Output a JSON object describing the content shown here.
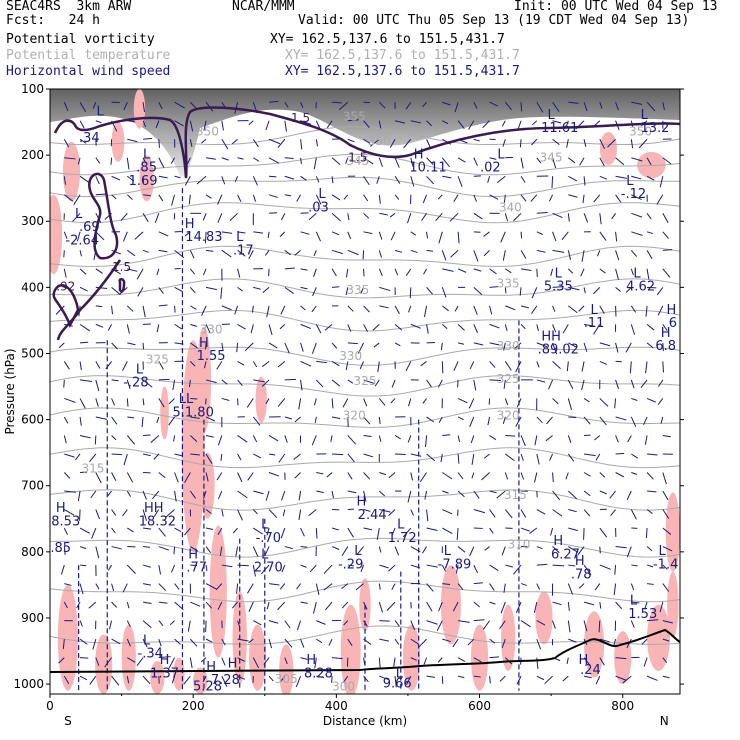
{
  "header": {
    "line1_left": "SEAC4RS  3km ARW",
    "line1_center": "NCAR/MMM",
    "line1_right": "Init: 00 UTC Wed 04 Sep 13",
    "line2_left": "Fcst:   24 h",
    "line2_right": "Valid: 00 UTC Thu 05 Sep 13 (19 CDT Wed 04 Sep 13)",
    "fields": [
      {
        "name": "Potential vorticity",
        "xy": "XY= 162.5,137.6 to 151.5,431.7",
        "color": "#000000"
      },
      {
        "name": "Potential temperature",
        "xy": "XY= 162.5,137.6 to 151.5,431.7",
        "color": "#b0b0b0"
      },
      {
        "name": "Horizontal wind speed",
        "xy": "XY= 162.5,137.6 to 151.5,431.7",
        "color": "#1a1a80"
      }
    ]
  },
  "chart_data": {
    "type": "cross-section",
    "xlabel": "Distance (km)",
    "ylabel": "Pressure (hPa)",
    "xlim": [
      0,
      880
    ],
    "ylim": [
      1015,
      100
    ],
    "x_ticks": [
      0,
      200,
      400,
      600,
      800
    ],
    "y_ticks": [
      100,
      200,
      300,
      400,
      500,
      600,
      700,
      800,
      900,
      1000
    ],
    "end_labels": {
      "left": "S",
      "right": "N"
    },
    "colors": {
      "pv_contour": "#3a1a50",
      "theta": "#aaaaaa",
      "wind": "#1a1a80",
      "shading": "#f9b5b5",
      "terrain": "#000000"
    },
    "theta_labels": [
      {
        "text": "350",
        "x": 220,
        "p": 170
      },
      {
        "text": "355",
        "x": 425,
        "p": 148
      },
      {
        "text": "350",
        "x": 460,
        "p": 185
      },
      {
        "text": "345",
        "x": 430,
        "p": 215
      },
      {
        "text": "350",
        "x": 825,
        "p": 170
      },
      {
        "text": "345",
        "x": 700,
        "p": 210
      },
      {
        "text": "340",
        "x": 643,
        "p": 285
      },
      {
        "text": "335",
        "x": 430,
        "p": 410
      },
      {
        "text": "335",
        "x": 640,
        "p": 400
      },
      {
        "text": "330",
        "x": 225,
        "p": 470
      },
      {
        "text": "330",
        "x": 420,
        "p": 510
      },
      {
        "text": "330",
        "x": 640,
        "p": 495
      },
      {
        "text": "325",
        "x": 150,
        "p": 515
      },
      {
        "text": "325",
        "x": 440,
        "p": 548
      },
      {
        "text": "325",
        "x": 640,
        "p": 545
      },
      {
        "text": "320",
        "x": 425,
        "p": 600
      },
      {
        "text": "320",
        "x": 640,
        "p": 600
      },
      {
        "text": "315",
        "x": 60,
        "p": 680
      },
      {
        "text": "315",
        "x": 650,
        "p": 720
      },
      {
        "text": "310",
        "x": 655,
        "p": 795
      },
      {
        "text": "305",
        "x": 330,
        "p": 998
      },
      {
        "text": "300",
        "x": 410,
        "p": 1010
      }
    ],
    "pv_labels": [
      {
        "text": "1.5",
        "x": 350,
        "p": 150
      },
      {
        "text": "1.5",
        "x": 430,
        "p": 210
      },
      {
        "text": "1.5",
        "x": 100,
        "p": 375
      },
      {
        "text": ".92",
        "x": 22,
        "p": 405
      }
    ],
    "hl_labels": [
      {
        "text": "L",
        "x": 70,
        "p": 140
      },
      {
        "text": ".34",
        "x": 55,
        "p": 180
      },
      {
        "text": "L",
        "x": 135,
        "p": 205
      },
      {
        "text": ".85",
        "x": 135,
        "p": 225
      },
      {
        "text": "1.69",
        "x": 130,
        "p": 245
      },
      {
        "text": "L",
        "x": 40,
        "p": 295
      },
      {
        "text": ".69",
        "x": 55,
        "p": 315
      },
      {
        "text": "-2.64",
        "x": 45,
        "p": 335
      },
      {
        "text": "H",
        "x": 195,
        "p": 310
      },
      {
        "text": "14.83",
        "x": 215,
        "p": 330
      },
      {
        "text": "L",
        "x": 265,
        "p": 330
      },
      {
        "text": ".17",
        "x": 270,
        "p": 350
      },
      {
        "text": "L",
        "x": 380,
        "p": 265
      },
      {
        "text": ".03",
        "x": 375,
        "p": 285
      },
      {
        "text": "H",
        "x": 515,
        "p": 205
      },
      {
        "text": "10.11",
        "x": 528,
        "p": 225
      },
      {
        "text": "L",
        "x": 630,
        "p": 205
      },
      {
        "text": ".02",
        "x": 615,
        "p": 225
      },
      {
        "text": "L",
        "x": 700,
        "p": 145
      },
      {
        "text": "11.61",
        "x": 712,
        "p": 165
      },
      {
        "text": "L",
        "x": 830,
        "p": 145
      },
      {
        "text": "13.2",
        "x": 845,
        "p": 165
      },
      {
        "text": "L",
        "x": 810,
        "p": 245
      },
      {
        "text": "-.12",
        "x": 815,
        "p": 265
      },
      {
        "text": "L",
        "x": 710,
        "p": 385
      },
      {
        "text": "5.35",
        "x": 710,
        "p": 405
      },
      {
        "text": "L",
        "x": 820,
        "p": 385
      },
      {
        "text": "4.62",
        "x": 825,
        "p": 405
      },
      {
        "text": "L",
        "x": 760,
        "p": 440
      },
      {
        "text": ".11",
        "x": 760,
        "p": 460
      },
      {
        "text": "H",
        "x": 868,
        "p": 440
      },
      {
        "text": "6",
        "x": 870,
        "p": 460
      },
      {
        "text": "H",
        "x": 860,
        "p": 475
      },
      {
        "text": "6.8",
        "x": 860,
        "p": 495
      },
      {
        "text": "HH",
        "x": 700,
        "p": 480
      },
      {
        "text": ".89.02",
        "x": 710,
        "p": 500
      },
      {
        "text": "H",
        "x": 215,
        "p": 490
      },
      {
        "text": "1.55",
        "x": 225,
        "p": 510
      },
      {
        "text": "L",
        "x": 125,
        "p": 530
      },
      {
        "text": "-.28",
        "x": 120,
        "p": 550
      },
      {
        "text": "LL",
        "x": 190,
        "p": 575
      },
      {
        "text": "5.1.80",
        "x": 200,
        "p": 595
      },
      {
        "text": "H",
        "x": 15,
        "p": 740
      },
      {
        "text": "8.53",
        "x": 22,
        "p": 760
      },
      {
        "text": ".85",
        "x": 15,
        "p": 800
      },
      {
        "text": "HH",
        "x": 145,
        "p": 740
      },
      {
        "text": "18.32",
        "x": 150,
        "p": 760
      },
      {
        "text": "H",
        "x": 435,
        "p": 730
      },
      {
        "text": "2.44",
        "x": 450,
        "p": 750
      },
      {
        "text": "L",
        "x": 490,
        "p": 765
      },
      {
        "text": "1.72",
        "x": 492,
        "p": 785
      },
      {
        "text": "L",
        "x": 300,
        "p": 765
      },
      {
        "text": "-.70",
        "x": 305,
        "p": 785
      },
      {
        "text": "H",
        "x": 200,
        "p": 810
      },
      {
        "text": ".77",
        "x": 205,
        "p": 830
      },
      {
        "text": "L",
        "x": 300,
        "p": 810
      },
      {
        "text": "2.70",
        "x": 305,
        "p": 830
      },
      {
        "text": "L",
        "x": 430,
        "p": 805
      },
      {
        "text": "-.29",
        "x": 420,
        "p": 825
      },
      {
        "text": "L",
        "x": 555,
        "p": 805
      },
      {
        "text": "-7.89",
        "x": 565,
        "p": 825
      },
      {
        "text": "H",
        "x": 710,
        "p": 790
      },
      {
        "text": "6.27",
        "x": 720,
        "p": 810
      },
      {
        "text": "H",
        "x": 740,
        "p": 820
      },
      {
        "text": ".78",
        "x": 742,
        "p": 840
      },
      {
        "text": "L",
        "x": 855,
        "p": 805
      },
      {
        "text": "-1.4",
        "x": 860,
        "p": 825
      },
      {
        "text": "L",
        "x": 815,
        "p": 880
      },
      {
        "text": "1.53",
        "x": 828,
        "p": 900
      },
      {
        "text": "L",
        "x": 135,
        "p": 940
      },
      {
        "text": "-.34",
        "x": 140,
        "p": 960
      },
      {
        "text": "H",
        "x": 160,
        "p": 970
      },
      {
        "text": "1.37",
        "x": 160,
        "p": 990
      },
      {
        "text": "H",
        "x": 225,
        "p": 980
      },
      {
        "text": "H",
        "x": 255,
        "p": 975
      },
      {
        "text": "7.28",
        "x": 245,
        "p": 1000
      },
      {
        "text": "5.28",
        "x": 220,
        "p": 1010
      },
      {
        "text": "H",
        "x": 365,
        "p": 970
      },
      {
        "text": "8.28",
        "x": 375,
        "p": 990
      },
      {
        "text": "L",
        "x": 488,
        "p": 990
      },
      {
        "text": "9.66",
        "x": 485,
        "p": 1005
      },
      {
        "text": "H",
        "x": 745,
        "p": 970
      },
      {
        "text": ".24",
        "x": 755,
        "p": 985
      }
    ]
  }
}
